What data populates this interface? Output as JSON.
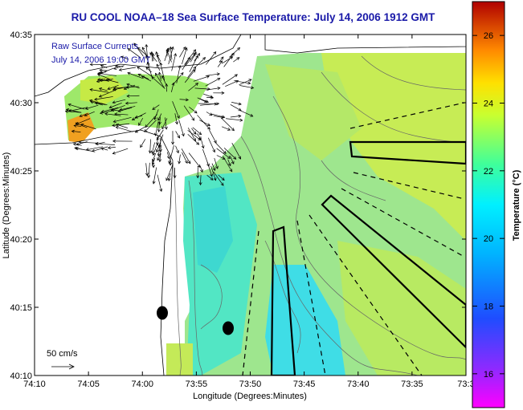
{
  "title": "RU COOL  NOAA–18  Sea Surface Temperature:  July 14, 2006 1912 GMT",
  "overlay": {
    "line1": "Raw Surface Currents",
    "line2": "July 14, 2006 19:00 GMT"
  },
  "scale_label": "50 cm/s",
  "x_axis": {
    "label": "Longitude (Degrees:Minutes)",
    "ticks": [
      "74:10",
      "74:05",
      "74:00",
      "73:55",
      "73:50",
      "73:45",
      "73:40",
      "73:35",
      "73:3"
    ]
  },
  "y_axis": {
    "label": "Latitude (Degrees:Minutes)",
    "ticks": [
      "40:35",
      "40:30",
      "40:25",
      "40:20",
      "40:15",
      "40:10"
    ]
  },
  "colorbar": {
    "label": "Temperature (°C)",
    "ticks": [
      "26",
      "24",
      "22",
      "20",
      "18",
      "16"
    ],
    "range": [
      15,
      27
    ],
    "colors": [
      "#ff00ff",
      "#5a3cff",
      "#0066ff",
      "#00ccff",
      "#00ffcc",
      "#7fff66",
      "#e6ff33",
      "#ffbf00",
      "#ff5500",
      "#cc0000"
    ]
  },
  "sst_colors": {
    "cool": "#2fe0d8",
    "mid": "#7fe8a0",
    "warm": "#c8ec50",
    "hot": "#f0a020"
  }
}
